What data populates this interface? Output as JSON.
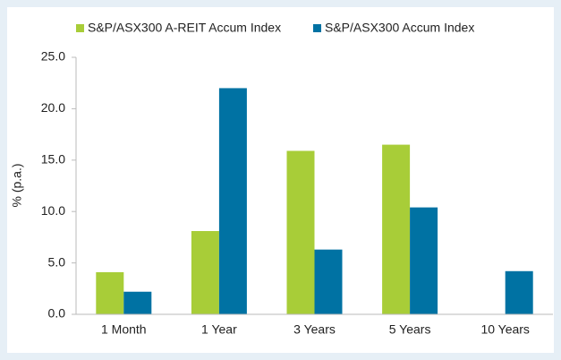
{
  "chart_data": {
    "type": "bar",
    "categories": [
      "1 Month",
      "1 Year",
      "3 Years",
      "5 Years",
      "10 Years"
    ],
    "series": [
      {
        "name": "S&P/ASX300 A-REIT Accum Index",
        "color": "#a8cd38",
        "values": [
          4.1,
          8.1,
          15.9,
          16.5,
          null
        ]
      },
      {
        "name": "S&P/ASX300 Accum Index",
        "color": "#0072a3",
        "values": [
          2.2,
          22.0,
          6.3,
          10.4,
          4.2
        ]
      }
    ],
    "y_label": "% (p.a.)",
    "ylim": [
      0,
      25
    ],
    "yticks": [
      {
        "value": 0,
        "label": "0.0"
      },
      {
        "value": 5,
        "label": "5.0"
      },
      {
        "value": 10,
        "label": "10.0"
      },
      {
        "value": 15,
        "label": "15.0"
      },
      {
        "value": 20,
        "label": "20.0"
      },
      {
        "value": 25,
        "label": "25.0"
      }
    ],
    "grid": false,
    "legend": "top"
  }
}
